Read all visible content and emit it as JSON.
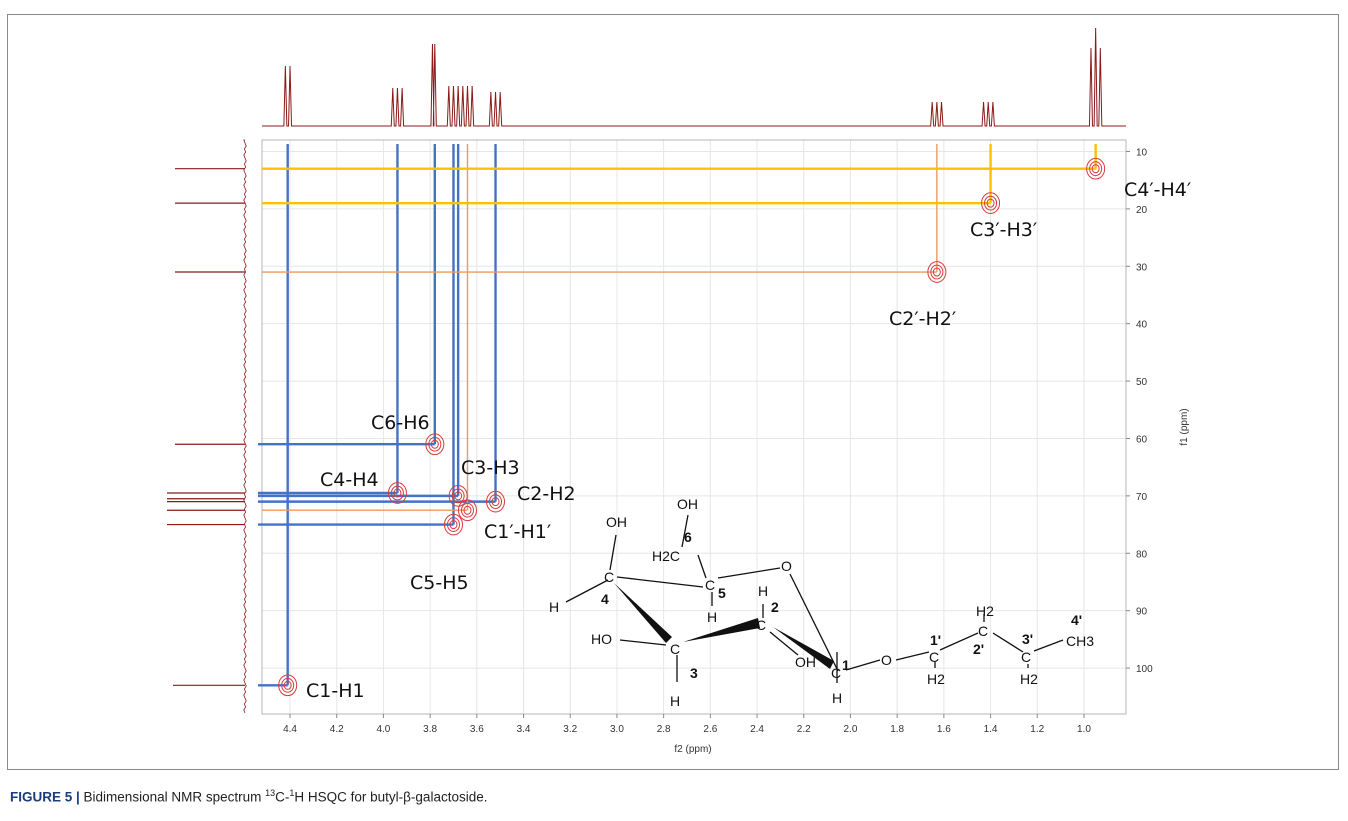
{
  "caption": {
    "label": "FIGURE 5 |",
    "text_before": " Bidimensional NMR spectrum ",
    "sup1": "13",
    "text_mid": "C-",
    "sup2": "1",
    "text_after": "H HSQC for butyl-β-galactoside."
  },
  "colors": {
    "galactose_lines": "#4472c4",
    "butyl_lines": "#ffc000",
    "butyl_thin_lines": "#ed9a5c",
    "contour": "#d93b3b",
    "spectrum": "#8b1a1a",
    "grid": "#e6e6e6"
  },
  "chart_data": {
    "type": "heatmap",
    "subtype": "2D NMR HSQC contour plot",
    "xlabel": "f2 (ppm)",
    "ylabel": "f1 (ppm)",
    "xlim": [
      4.52,
      0.82
    ],
    "ylim": [
      108,
      8
    ],
    "x_ticks": [
      "4.4",
      "4.2",
      "4.0",
      "3.8",
      "3.6",
      "3.4",
      "3.2",
      "3.0",
      "2.8",
      "2.6",
      "2.4",
      "2.2",
      "2.0",
      "1.8",
      "1.6",
      "1.4",
      "1.2",
      "1.0"
    ],
    "y_ticks": [
      "10",
      "20",
      "30",
      "40",
      "50",
      "60",
      "70",
      "80",
      "90",
      "100"
    ],
    "grid": true,
    "cross_peaks": [
      {
        "label": "C1-H1",
        "h_ppm": 4.41,
        "c_ppm": 103.0,
        "group": "galactose"
      },
      {
        "label": "C2-H2",
        "h_ppm": 3.52,
        "c_ppm": 71.0,
        "group": "galactose"
      },
      {
        "label": "C3-H3",
        "h_ppm": 3.68,
        "c_ppm": 70.0,
        "group": "galactose"
      },
      {
        "label": "C4-H4",
        "h_ppm": 3.94,
        "c_ppm": 69.5,
        "group": "galactose"
      },
      {
        "label": "C5-H5",
        "h_ppm": 3.7,
        "c_ppm": 75.0,
        "group": "galactose"
      },
      {
        "label": "C6-H6",
        "h_ppm": 3.78,
        "c_ppm": 61.0,
        "group": "galactose"
      },
      {
        "label": "C1′-H1′",
        "h_ppm": 3.64,
        "c_ppm": 72.5,
        "group": "butyl"
      },
      {
        "label": "C2′-H2′",
        "h_ppm": 1.63,
        "c_ppm": 31.0,
        "group": "butyl"
      },
      {
        "label": "C3′-H3′",
        "h_ppm": 1.4,
        "c_ppm": 19.0,
        "group": "butyl"
      },
      {
        "label": "C4′-H4′",
        "h_ppm": 0.95,
        "c_ppm": 13.0,
        "group": "butyl"
      }
    ],
    "proton_spectrum_peaks": [
      4.42,
      4.4,
      3.96,
      3.94,
      3.92,
      3.79,
      3.78,
      3.72,
      3.7,
      3.68,
      3.66,
      3.64,
      3.62,
      3.54,
      3.52,
      3.5,
      1.65,
      1.63,
      1.61,
      1.43,
      1.41,
      1.39,
      0.97,
      0.95,
      0.93
    ],
    "carbon_spectrum_peaks": [
      13.0,
      19.0,
      31.0,
      61.0,
      69.5,
      70.5,
      71.0,
      72.5,
      75.0,
      103.0
    ]
  },
  "structure": {
    "atoms": [
      "OH",
      "OH",
      "6",
      "H2C",
      "O",
      "H",
      "4",
      "C",
      "C",
      "5",
      "H",
      "H",
      "2",
      "C",
      "HO",
      "C",
      "OH",
      "C",
      "1",
      "O",
      "3",
      "H",
      "H",
      "1'",
      "C",
      "H2",
      "H2",
      "C",
      "2'",
      "3'",
      "C",
      "H2",
      "4'",
      "CH3"
    ]
  }
}
